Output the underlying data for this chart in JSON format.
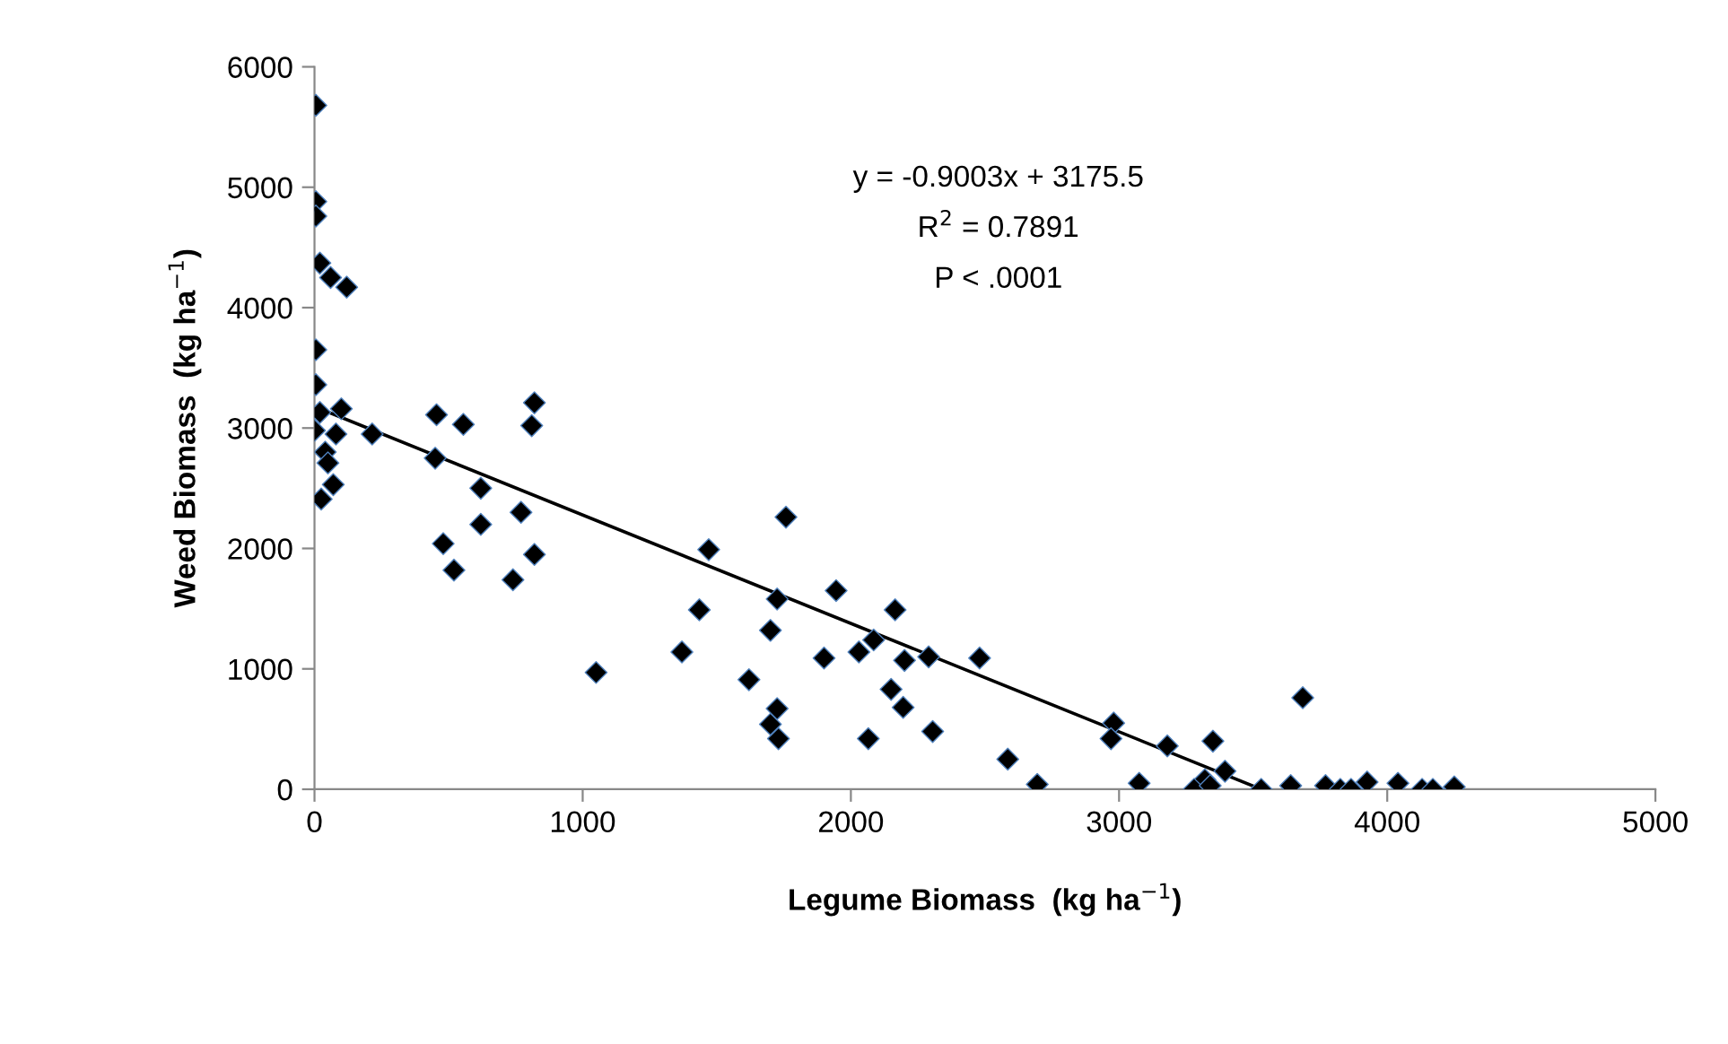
{
  "chart_data": {
    "type": "scatter",
    "xlabel": "Legume Biomass  (kg ha$^{−1}$)",
    "ylabel": "Weed Biomass  (kg ha$^{−1}$)",
    "xlim": [
      0,
      5000
    ],
    "xticks": [
      0,
      1000,
      2000,
      3000,
      4000,
      5000
    ],
    "ylim": [
      0,
      6000
    ],
    "yticks": [
      0,
      1000,
      2000,
      3000,
      4000,
      5000,
      6000
    ],
    "grid": false,
    "legend": false,
    "annotations": [
      "y = -0.9003x + 3175.5",
      "R$^{2}$ = 0.7891",
      "P < .0001"
    ],
    "series": [
      {
        "marker": "diamond",
        "color": "#000000",
        "x": [
          5,
          5,
          5,
          20,
          60,
          120,
          5,
          5,
          20,
          100,
          0,
          80,
          40,
          50,
          70,
          25,
          215,
          455,
          555,
          820,
          810,
          450,
          620,
          620,
          480,
          520,
          770,
          820,
          740,
          1050,
          1758,
          1470,
          1435,
          1370,
          1700,
          1620,
          1725,
          1700,
          1730,
          1725,
          1945,
          2165,
          2085,
          2030,
          1900,
          2200,
          2290,
          2480,
          2150,
          2195,
          2065,
          2305,
          2585,
          2695,
          2980,
          2970,
          3180,
          3350,
          3395,
          3320,
          3280,
          3340,
          3075,
          3530,
          3640,
          3685,
          3770,
          3825,
          3865,
          3925,
          4040,
          4130,
          4170,
          4250
        ],
        "values": [
          5680,
          4880,
          4760,
          4370,
          4250,
          4170,
          3650,
          3360,
          3130,
          3160,
          2980,
          2950,
          2800,
          2710,
          2530,
          2410,
          2950,
          3110,
          3030,
          3210,
          3020,
          2750,
          2500,
          2200,
          2040,
          1820,
          2300,
          1950,
          1740,
          970,
          2260,
          1990,
          1490,
          1140,
          1320,
          910,
          670,
          540,
          420,
          1580,
          1650,
          1490,
          1240,
          1140,
          1090,
          1070,
          1100,
          1090,
          830,
          680,
          420,
          480,
          250,
          40,
          550,
          420,
          360,
          400,
          150,
          80,
          0,
          30,
          50,
          0,
          30,
          760,
          30,
          0,
          0,
          60,
          50,
          0,
          0,
          20
        ]
      },
      {
        "type": "line",
        "marker": "none",
        "color": "#000000",
        "x": [
          20,
          3530
        ],
        "values": [
          3160,
          0
        ]
      }
    ]
  }
}
